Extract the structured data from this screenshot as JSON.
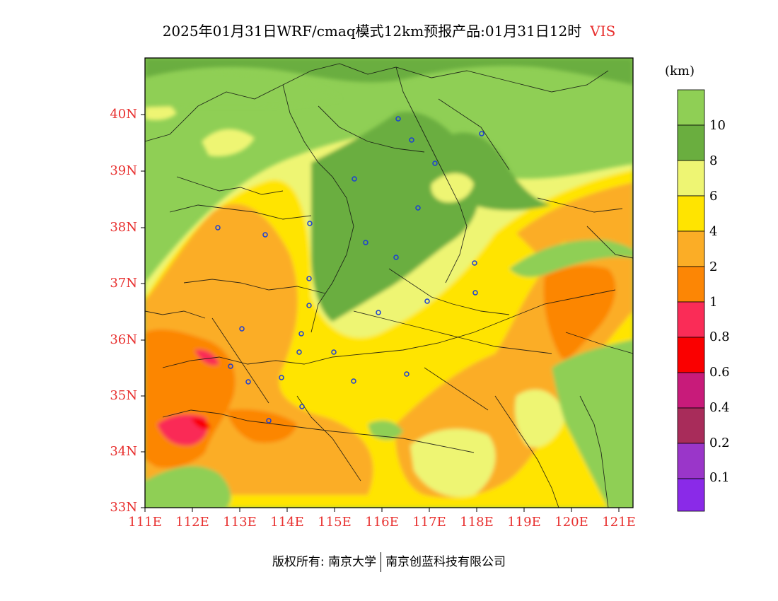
{
  "title": {
    "text": "2025年01月31日WRF/cmaq模式12km预报产品:01月31日12时",
    "variable": "VIS"
  },
  "colorbar": {
    "unit": "(km)",
    "labels": [
      "10",
      "8",
      "6",
      "4",
      "2",
      "1",
      "0.8",
      "0.6",
      "0.4",
      "0.2",
      "0.1"
    ],
    "colors": [
      "#8fcf55",
      "#6aae3f",
      "#eef573",
      "#ffe400",
      "#fbad26",
      "#fc8605",
      "#fa2c57",
      "#fa0000",
      "#c81b7a",
      "#a82c5a",
      "#9a36c9",
      "#8a2ae8"
    ]
  },
  "axes": {
    "lat_labels": [
      "40N",
      "39N",
      "38N",
      "37N",
      "36N",
      "35N",
      "34N",
      "33N"
    ],
    "lon_labels": [
      "111E",
      "112E",
      "113E",
      "114E",
      "115E",
      "116E",
      "117E",
      "118E",
      "119E",
      "120E",
      "121E"
    ]
  },
  "footer": {
    "copyright": "版权所有: 南京大学",
    "company": "南京创蓝科技有限公司"
  }
}
